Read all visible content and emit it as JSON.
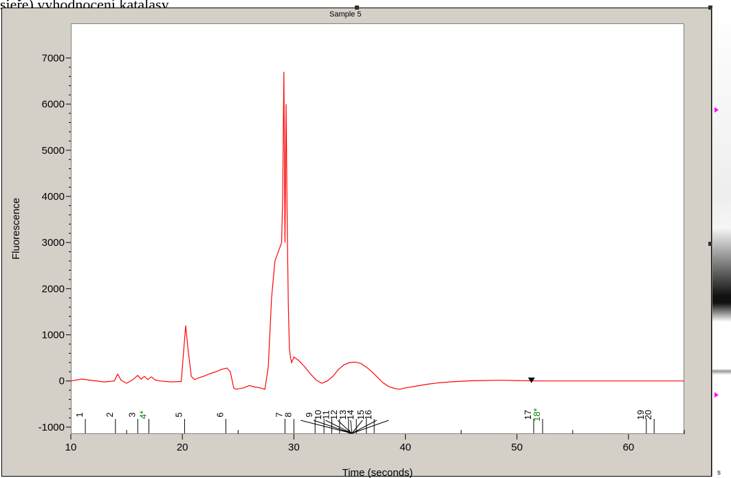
{
  "document": {
    "caption": "sieře) vyhodnocení katalasy"
  },
  "side_panel": {
    "label": "s",
    "arrow_color": "#ff00ff"
  },
  "chart_data": {
    "type": "line",
    "title": "Sample 5",
    "xlabel": "Time (seconds)",
    "ylabel": "Fluorescence",
    "xlim": [
      10,
      65
    ],
    "ylim": [
      -1150,
      7750
    ],
    "xticks": [
      10,
      20,
      30,
      40,
      50,
      60
    ],
    "yticks": [
      -1000,
      0,
      1000,
      2000,
      3000,
      4000,
      5000,
      6000,
      7000
    ],
    "grid": false,
    "line_color": "#ff0000",
    "series": [
      {
        "x": [
          10,
          11,
          12,
          13,
          13.9,
          14.2,
          14.5,
          15,
          15.5,
          16,
          16.3,
          16.6,
          16.9,
          17.2,
          17.6,
          18,
          19,
          19.9,
          20.1,
          20.3,
          20.5,
          20.8,
          21.1,
          21.5,
          22,
          22.5,
          23,
          23.5,
          24,
          24.3,
          24.6,
          24.8,
          25.5,
          26,
          26.5,
          27,
          27.4,
          27.7,
          28,
          28.3,
          28.6,
          28.9,
          29,
          29.1,
          29.2,
          29.3,
          29.4,
          29.5,
          29.6,
          29.7,
          29.8,
          30,
          30.4,
          31,
          31.5,
          32,
          32.5,
          33,
          33.5,
          34,
          34.5,
          35,
          35.5,
          36,
          36.5,
          37,
          37.5,
          38,
          38.5,
          39,
          39.5,
          40,
          41,
          42,
          43,
          44,
          45,
          46,
          47,
          48,
          49,
          50,
          51,
          52,
          53,
          54,
          55,
          56,
          57,
          58,
          59,
          60,
          61,
          62,
          63,
          64,
          65
        ],
        "y": [
          0,
          40,
          10,
          -20,
          0,
          150,
          20,
          -50,
          20,
          120,
          40,
          100,
          30,
          90,
          20,
          0,
          -20,
          -10,
          600,
          1200,
          700,
          100,
          30,
          70,
          110,
          160,
          200,
          250,
          280,
          200,
          -150,
          -180,
          -150,
          -100,
          -130,
          -150,
          -180,
          300,
          1800,
          2600,
          2800,
          3000,
          4000,
          6700,
          3000,
          6000,
          3500,
          1600,
          700,
          500,
          400,
          520,
          450,
          300,
          150,
          20,
          -50,
          0,
          100,
          250,
          350,
          400,
          410,
          380,
          300,
          200,
          80,
          -40,
          -120,
          -160,
          -180,
          -150,
          -110,
          -70,
          -40,
          -20,
          -5,
          5,
          10,
          15,
          15,
          10,
          5,
          0,
          0,
          0,
          0,
          0,
          0,
          0,
          0,
          0,
          0,
          0,
          0,
          0,
          0
        ]
      }
    ],
    "marker": {
      "x": 51.3,
      "y": 0,
      "symbol": "down-triangle"
    },
    "peaks": [
      {
        "label": "1",
        "x": 11.3,
        "color": "#000000"
      },
      {
        "label": "2",
        "x": 14.0,
        "color": "#000000"
      },
      {
        "label": "3",
        "x": 16.0,
        "color": "#000000"
      },
      {
        "label": "4*",
        "x": 17.0,
        "color": "#008000"
      },
      {
        "label": "5",
        "x": 20.2,
        "color": "#000000"
      },
      {
        "label": "6",
        "x": 23.9,
        "color": "#000000"
      },
      {
        "label": "7",
        "x": 29.2,
        "color": "#000000"
      },
      {
        "label": "8",
        "x": 30.0,
        "color": "#000000"
      },
      {
        "label": "9",
        "x": 31.9,
        "color": "#000000"
      },
      {
        "label": "10",
        "x": 32.7,
        "color": "#000000"
      },
      {
        "label": "11",
        "x": 33.4,
        "color": "#000000"
      },
      {
        "label": "12",
        "x": 34.1,
        "color": "#000000"
      },
      {
        "label": "13",
        "x": 34.9,
        "color": "#000000"
      },
      {
        "label": "14",
        "x": 35.6,
        "color": "#000000"
      },
      {
        "label": "15",
        "x": 36.5,
        "color": "#000000"
      },
      {
        "label": "16",
        "x": 37.2,
        "color": "#000000"
      },
      {
        "label": "17",
        "x": 51.5,
        "color": "#000000"
      },
      {
        "label": "18*",
        "x": 52.3,
        "color": "#008000"
      },
      {
        "label": "19",
        "x": 61.6,
        "color": "#000000"
      },
      {
        "label": "20",
        "x": 62.3,
        "color": "#000000"
      }
    ]
  }
}
